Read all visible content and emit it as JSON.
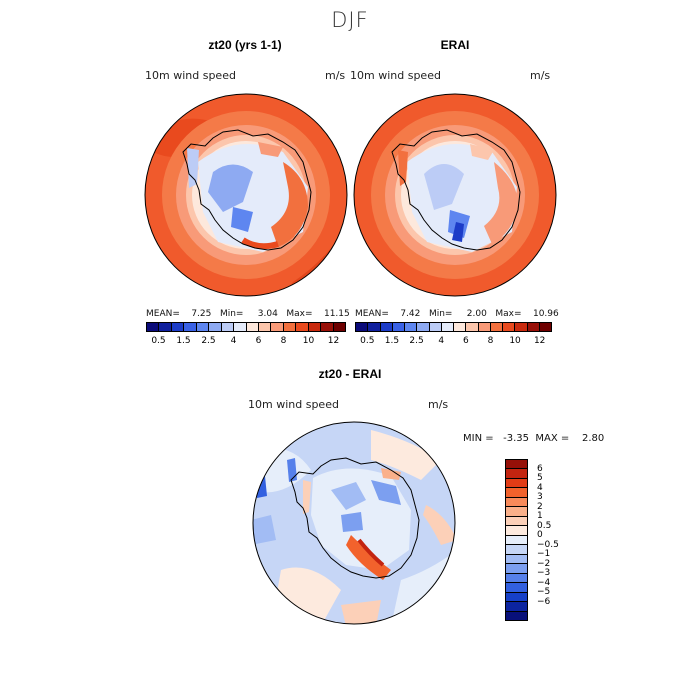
{
  "figure": {
    "title": "DJF"
  },
  "panels": [
    {
      "title": "zt20 (yrs 1-1)",
      "variable": "10m wind speed",
      "units": "m/s",
      "stats": "MEAN=    7.25   Min=     3.04   Max=    11.15"
    },
    {
      "title": "ERAI",
      "variable": "10m wind speed",
      "units": "m/s",
      "stats": "MEAN=    7.42   Min=     2.00   Max=    10.96"
    },
    {
      "title": "zt20 - ERAI",
      "variable": "10m wind speed",
      "units": "m/s",
      "stats": "MIN =   -3.35  MAX =    2.80"
    }
  ],
  "wind_colorbar": {
    "colors": [
      "#0b0b7a",
      "#10209e",
      "#1c3cc8",
      "#3a62e6",
      "#5e86f0",
      "#8eaaf2",
      "#bcccf6",
      "#e4ebfa",
      "#fde8dc",
      "#fcc6ac",
      "#f89a78",
      "#f2703e",
      "#e94a1e",
      "#c92a0e",
      "#981008",
      "#6e0000"
    ],
    "tick_labels": [
      "0.5",
      "1.5",
      "2.5",
      "4",
      "6",
      "8",
      "10",
      "12"
    ]
  },
  "diff_colorbar": {
    "colors": [
      "#961008",
      "#c32410",
      "#e23c16",
      "#f2622c",
      "#f88a5a",
      "#fab08a",
      "#fcd0b8",
      "#fdeade",
      "#e6eefa",
      "#c6d6f6",
      "#a2bcf4",
      "#7c9ff0",
      "#5680ea",
      "#3260e0",
      "#1640c8",
      "#0c24a0",
      "#08107a"
    ],
    "tick_labels": [
      "6",
      "5",
      "4",
      "3",
      "2",
      "1",
      "0.5",
      "0",
      "−0.5",
      "−1",
      "−2",
      "−3",
      "−4",
      "−5",
      "−6"
    ]
  }
}
